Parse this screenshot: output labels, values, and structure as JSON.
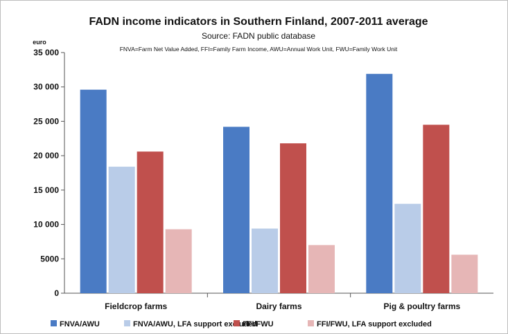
{
  "chart_data": {
    "type": "bar",
    "title": "FADN income indicators in Southern Finland, 2007-2011 average",
    "subtitle": "Source: FADN public database",
    "note": "FNVA=Farm Net Value Added,  FFI=Family Farm Income, AWU=Annual  Work Unit, FWU=Family Work Unit",
    "ylabel": "euro",
    "xlabel": "",
    "ylim": [
      0,
      35000
    ],
    "yticks": [
      0,
      5000,
      10000,
      15000,
      20000,
      25000,
      30000,
      35000
    ],
    "ytick_labels": [
      "0",
      "5000",
      "10 000",
      "15 000",
      "20 000",
      "25 000",
      "30 000",
      "35 000"
    ],
    "grid": false,
    "legend_position": "bottom",
    "categories": [
      "Fieldcrop farms",
      "Dairy farms",
      "Pig & poultry farms"
    ],
    "series": [
      {
        "name": "FNVA/AWU",
        "color": "#4a7bc4",
        "values": [
          29600,
          24200,
          31900
        ]
      },
      {
        "name": "FNVA/AWU, LFA support excluded",
        "color": "#b9cce8",
        "values": [
          18400,
          9400,
          13000
        ]
      },
      {
        "name": "FFI/FWU",
        "color": "#c0504d",
        "values": [
          20600,
          21800,
          24500
        ]
      },
      {
        "name": "FFI/FWU, LFA support excluded",
        "color": "#e6b6b6",
        "values": [
          9300,
          7000,
          5600
        ]
      }
    ]
  }
}
